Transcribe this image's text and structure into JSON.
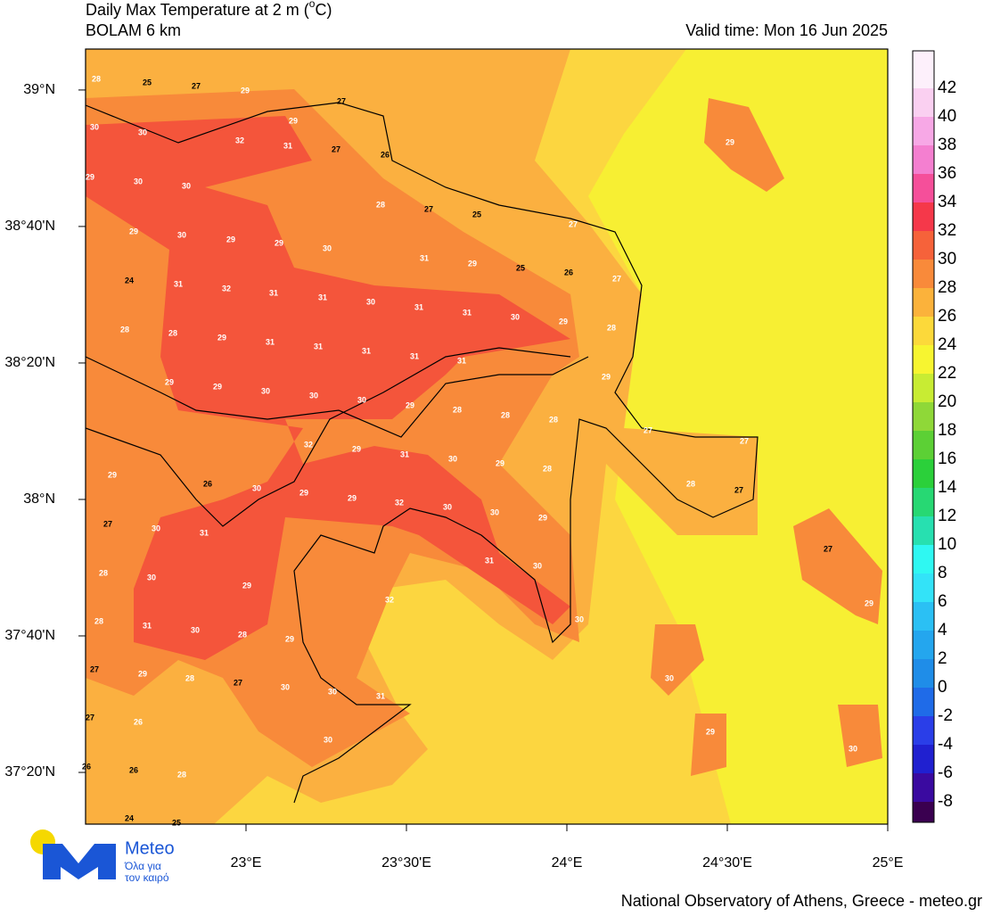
{
  "header": {
    "title": "Daily Max Temperature at 2 m (",
    "title_sup": "o",
    "title_end": "C)",
    "subtitle": "BOLAM 6 km",
    "valid_time": "Valid time: Mon 16 Jun 2025"
  },
  "map": {
    "xlim": [
      22.5,
      25
    ],
    "ylim": [
      37.207,
      39.1
    ],
    "xticks": [
      {
        "value": 23,
        "label": "23°E"
      },
      {
        "value": 23.5,
        "label": "23°30'E"
      },
      {
        "value": 24,
        "label": "24°E"
      },
      {
        "value": 24.5,
        "label": "24°30'E"
      },
      {
        "value": 25,
        "label": "25°E"
      }
    ],
    "yticks": [
      {
        "value": 39,
        "label": "39°N"
      },
      {
        "value": 38.6667,
        "label": "38°40'N"
      },
      {
        "value": 38.3333,
        "label": "38°20'N"
      },
      {
        "value": 38,
        "label": "38°N"
      },
      {
        "value": 37.6667,
        "label": "37°40'N"
      },
      {
        "value": 37.3333,
        "label": "37°20'N"
      }
    ],
    "labels": [
      28,
      25,
      27,
      29,
      29,
      27,
      30,
      30,
      32,
      31,
      27,
      26,
      29,
      30,
      30,
      28,
      27,
      25,
      29,
      30,
      29,
      29,
      30,
      27,
      24,
      31,
      32,
      31,
      31,
      31,
      29,
      25,
      26,
      27,
      30,
      31,
      31,
      30,
      29,
      28,
      28,
      28,
      29,
      31,
      31,
      31,
      31,
      31,
      29,
      29,
      30,
      30,
      30,
      29,
      28,
      28,
      28,
      29,
      27,
      27,
      32,
      29,
      31,
      30,
      29,
      28,
      29,
      26,
      30,
      29,
      29,
      32,
      30,
      30,
      29,
      28,
      27,
      27,
      30,
      31,
      31,
      30,
      27,
      28,
      30,
      29,
      32,
      30,
      29,
      28,
      31,
      30,
      28,
      29,
      27,
      29,
      28,
      27,
      30,
      30,
      31,
      30,
      27,
      26,
      30,
      29,
      30,
      26,
      26,
      28,
      24,
      25,
      29
    ]
  },
  "colorbar": {
    "labels": [
      -8,
      -6,
      -4,
      -2,
      0,
      2,
      4,
      6,
      8,
      10,
      12,
      14,
      16,
      18,
      20,
      22,
      24,
      26,
      28,
      30,
      32,
      34,
      36,
      38,
      40,
      42
    ],
    "colors": [
      "#3a0050",
      "#3a0aa0",
      "#2020d0",
      "#2a3ee8",
      "#1f6be8",
      "#1f8de8",
      "#24a6ee",
      "#2bc0f4",
      "#33e3f8",
      "#2ff8f2",
      "#27e0b0",
      "#27d873",
      "#2bd03a",
      "#5cd035",
      "#8fd838",
      "#c8ec33",
      "#f7f530",
      "#fcd93a",
      "#fbb23b",
      "#f98a3a",
      "#f6623a",
      "#f5384a",
      "#f54f9a",
      "#f47fd0",
      "#f7a8e6",
      "#fad0f1",
      "#fdf0fb"
    ]
  },
  "logo": {
    "name": "Meteo",
    "line1": "Όλα για",
    "line2": "τον καιρό"
  },
  "footer": "National Observatory of Athens, Greece - meteo.gr"
}
